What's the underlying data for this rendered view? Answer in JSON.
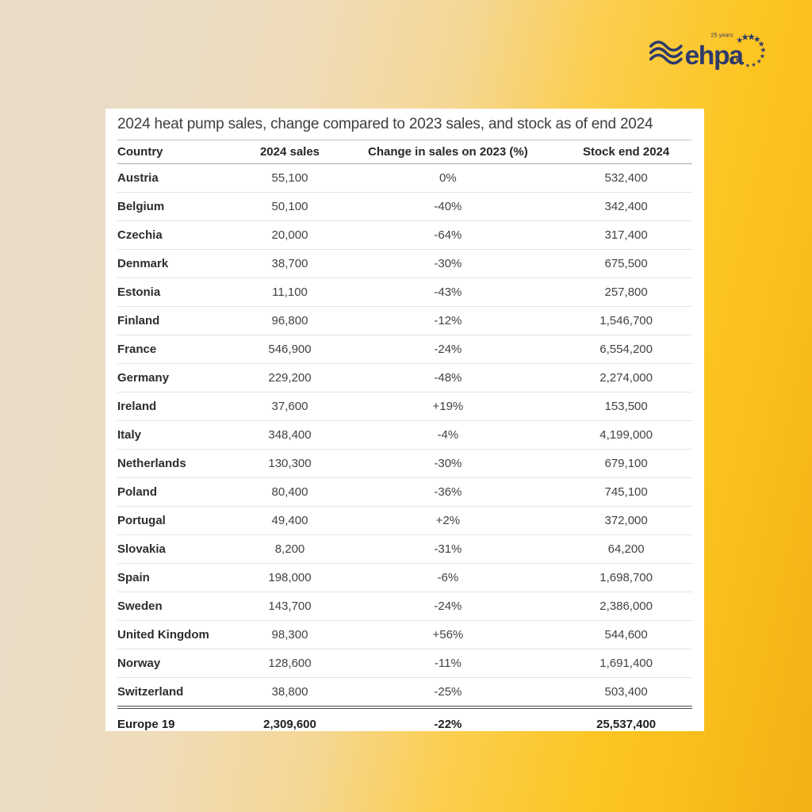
{
  "logo": {
    "brand": "ehpa",
    "tagline": "25 years",
    "color": "#2e3a6b"
  },
  "colors": {
    "background_left": "#e8dbc8",
    "background_mid": "#fbce4e",
    "background_right": "#f2b114",
    "card": "#ffffff",
    "title_text": "#3e3e3e",
    "header_text": "#272727",
    "body_text": "#424242",
    "row_divider": "#e3e3e3",
    "total_divider": "#4f4f4f"
  },
  "chart_data": {
    "type": "table",
    "title": "2024 heat pump sales, change compared to 2023 sales, and stock as of end 2024",
    "columns": [
      "Country",
      "2024 sales",
      "Change in sales on 2023 (%)",
      "Stock end 2024"
    ],
    "rows": [
      [
        "Austria",
        "55,100",
        "0%",
        "532,400"
      ],
      [
        "Belgium",
        "50,100",
        "-40%",
        "342,400"
      ],
      [
        "Czechia",
        "20,000",
        "-64%",
        "317,400"
      ],
      [
        "Denmark",
        "38,700",
        "-30%",
        "675,500"
      ],
      [
        "Estonia",
        "11,100",
        "-43%",
        "257,800"
      ],
      [
        "Finland",
        "96,800",
        "-12%",
        "1,546,700"
      ],
      [
        "France",
        "546,900",
        "-24%",
        "6,554,200"
      ],
      [
        "Germany",
        "229,200",
        "-48%",
        "2,274,000"
      ],
      [
        "Ireland",
        "37,600",
        "+19%",
        "153,500"
      ],
      [
        "Italy",
        "348,400",
        "-4%",
        "4,199,000"
      ],
      [
        "Netherlands",
        "130,300",
        "-30%",
        "679,100"
      ],
      [
        "Poland",
        "80,400",
        "-36%",
        "745,100"
      ],
      [
        "Portugal",
        "49,400",
        "+2%",
        "372,000"
      ],
      [
        "Slovakia",
        "8,200",
        "-31%",
        "64,200"
      ],
      [
        "Spain",
        "198,000",
        "-6%",
        "1,698,700"
      ],
      [
        "Sweden",
        "143,700",
        "-24%",
        "2,386,000"
      ],
      [
        "United Kingdom",
        "98,300",
        "+56%",
        "544,600"
      ],
      [
        "Norway",
        "128,600",
        "-11%",
        "1,691,400"
      ],
      [
        "Switzerland",
        "38,800",
        "-25%",
        "503,400"
      ]
    ],
    "total": [
      "Europe 19",
      "2,309,600",
      "-22%",
      "25,537,400"
    ]
  }
}
